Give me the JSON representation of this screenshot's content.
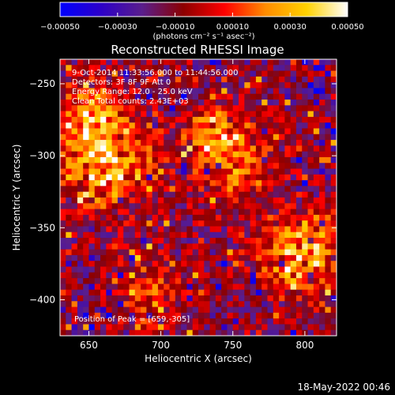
{
  "chart_data": {
    "type": "heatmap",
    "title": "Reconstructed RHESSI Image",
    "xlabel": "Heliocentric X (arcsec)",
    "ylabel": "Heliocentric Y (arcsec)",
    "xlim": [
      630,
      822
    ],
    "ylim": [
      -425,
      -233
    ],
    "x_ticks": [
      650,
      700,
      750,
      800
    ],
    "x_tick_labels": [
      "650",
      "700",
      "750",
      "800"
    ],
    "y_ticks": [
      -250,
      -300,
      -350,
      -400
    ],
    "y_tick_labels": [
      "−250",
      "−300",
      "−350",
      "−400"
    ],
    "colorbar": {
      "range": [
        -0.0005,
        0.0005
      ],
      "ticks": [
        -0.0005,
        -0.0003,
        -0.0001,
        0.0001,
        0.0003,
        0.0005
      ],
      "tick_labels": [
        "−0.00050",
        "−0.00030",
        "−0.00010",
        "0.00010",
        "0.00030",
        "0.00050"
      ],
      "unit_label": "(photons cm⁻² s⁻¹ asec⁻²)",
      "colors": [
        "#0000ff",
        "#2d00c8",
        "#5a1e8c",
        "#8c0000",
        "#ff0000",
        "#ff8c00",
        "#ffd200",
        "#ffffff"
      ]
    },
    "annotations": {
      "time": "9-Oct-2014 11:33:56.000 to 11:44:56.000",
      "detectors": "Detectors: 3F 8F 9F Att 0",
      "energy": "Energy Range: 12.0 - 25.0 keV",
      "method": "Clean     Total counts: 2.43E+03",
      "peak": "Position of Peak = [659,-305]"
    },
    "bright_regions": [
      {
        "x": 662,
        "y": -305,
        "intensity": 0.00045,
        "spread": 22
      },
      {
        "x": 650,
        "y": -270,
        "intensity": 0.00032,
        "spread": 16
      },
      {
        "x": 798,
        "y": -368,
        "intensity": 0.00042,
        "spread": 22
      },
      {
        "x": 750,
        "y": -305,
        "intensity": 0.0003,
        "spread": 20
      },
      {
        "x": 735,
        "y": -285,
        "intensity": 0.00025,
        "spread": 14
      },
      {
        "x": 690,
        "y": -395,
        "intensity": 0.00022,
        "spread": 18
      }
    ]
  },
  "footer": {
    "date": "18-May-2022 00:46"
  }
}
